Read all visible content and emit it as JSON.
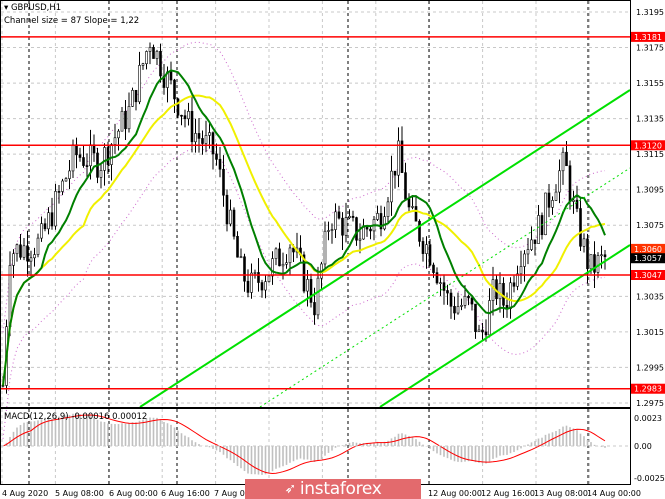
{
  "header": {
    "symbol": "GBPUSD,H1",
    "channel_info": "Channel size = 87 Slope = 1,22"
  },
  "macd": {
    "label": "MACD(12,26,9) -0.00016 0.00012",
    "axis": [
      "0.0023",
      "0.00",
      "-0.00258"
    ]
  },
  "logo": {
    "text": "instaforex"
  },
  "colors": {
    "level_line": "#ff0000",
    "channel": "#00e000",
    "fast_ma": "#008000",
    "slow_ma": "#f0f000",
    "envelope": "#cc66cc",
    "macd_hist": "#c0c0c0",
    "macd_signal": "#ff0000"
  },
  "chart_data": {
    "type": "candlestick",
    "symbol": "GBPUSD",
    "timeframe": "H1",
    "ylim": [
      1.2966,
      1.3202
    ],
    "price_ticks": [
      "1.3195",
      "1.3175",
      "1.3155",
      "1.3135",
      "1.3115",
      "1.3095",
      "1.3075",
      "1.3035",
      "1.3015",
      "1.2995",
      "1.2975"
    ],
    "time_ticks": [
      "4 Aug 2020",
      "5 Aug 08:00",
      "6 Aug 00:00",
      "6 Aug 16:00",
      "7 Aug 0",
      "12 Aug 00:00",
      "12 Aug 16:00",
      "13 Aug 08:00",
      "14 Aug 00:00"
    ],
    "levels": [
      {
        "price": 1.3181,
        "label": "1.3181"
      },
      {
        "price": 1.312,
        "label": "1.3120"
      },
      {
        "price": 1.3047,
        "label": "1.3047"
      },
      {
        "price": 1.2983,
        "label": "1.2983"
      }
    ],
    "current_price": {
      "price": 1.3057,
      "label": "1.3057"
    },
    "ask_price": {
      "price": 1.306,
      "label": "1.3060"
    },
    "approx_price_path": [
      [
        "4 Aug",
        1.2985
      ],
      [
        "4 Aug",
        1.306
      ],
      [
        "4 Aug",
        1.3065
      ],
      [
        "5 Aug",
        1.3115
      ],
      [
        "5 Aug",
        1.311
      ],
      [
        "5 Aug",
        1.314
      ],
      [
        "6 Aug",
        1.318
      ],
      [
        "6 Aug",
        1.316
      ],
      [
        "6 Aug",
        1.313
      ],
      [
        "6 Aug",
        1.3115
      ],
      [
        "7 Aug",
        1.305
      ],
      [
        "7 Aug",
        1.304
      ],
      [
        "7 Aug",
        1.305
      ],
      [
        "10 Aug",
        1.3065
      ],
      [
        "10 Aug",
        1.303
      ],
      [
        "10 Aug",
        1.308
      ],
      [
        "11 Aug",
        1.307
      ],
      [
        "11 Aug",
        1.308
      ],
      [
        "11 Aug",
        1.3115
      ],
      [
        "11 Aug",
        1.308
      ],
      [
        "12 Aug",
        1.306
      ],
      [
        "12 Aug",
        1.303
      ],
      [
        "12 Aug",
        1.303
      ],
      [
        "12 Aug",
        1.301
      ],
      [
        "12 Aug",
        1.304
      ],
      [
        "12 Aug",
        1.303
      ],
      [
        "13 Aug",
        1.306
      ],
      [
        "13 Aug",
        1.3075
      ],
      [
        "13 Aug",
        1.31
      ],
      [
        "13 Aug",
        1.311
      ],
      [
        "13 Aug",
        1.308
      ],
      [
        "14 Aug",
        1.305
      ],
      [
        "14 Aug",
        1.3057
      ]
    ]
  }
}
